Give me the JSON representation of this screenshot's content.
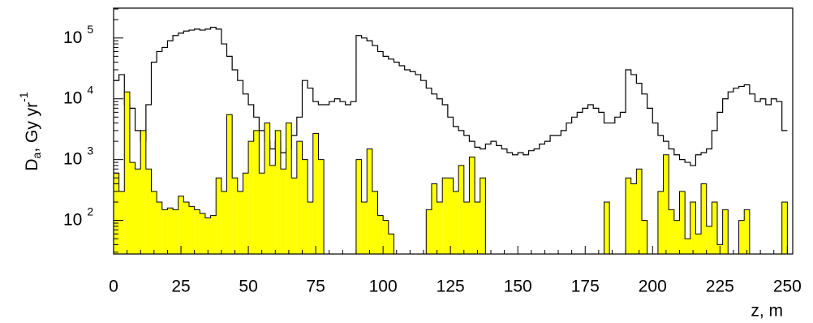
{
  "chart_data": {
    "type": "histogram",
    "y_label_parts": [
      "D",
      "a",
      ", Gy  yr",
      "-1"
    ],
    "x_label": "z, m",
    "xlim": [
      0,
      252
    ],
    "xticks": [
      0,
      25,
      50,
      75,
      100,
      125,
      150,
      175,
      200,
      225,
      250
    ],
    "ylim": [
      28,
      310000
    ],
    "log_y": true,
    "yticks": [
      {
        "value": 100,
        "label": "10",
        "exponent": "2"
      },
      {
        "value": 1000,
        "label": "10",
        "exponent": "3"
      },
      {
        "value": 10000,
        "label": "10",
        "exponent": "4"
      },
      {
        "value": 100000,
        "label": "10",
        "exponent": "5"
      }
    ],
    "bins": [
      0,
      2,
      4,
      6,
      8,
      10,
      12,
      14,
      16,
      18,
      20,
      22,
      24,
      26,
      28,
      30,
      32,
      34,
      36,
      38,
      40,
      42,
      44,
      46,
      48,
      50,
      52,
      54,
      56,
      58,
      60,
      62,
      64,
      66,
      68,
      70,
      72,
      74,
      76,
      78,
      80,
      82,
      84,
      86,
      88,
      90,
      92,
      94,
      96,
      98,
      100,
      102,
      104,
      106,
      108,
      110,
      112,
      114,
      116,
      118,
      120,
      122,
      124,
      126,
      128,
      130,
      132,
      134,
      136,
      138,
      140,
      142,
      144,
      146,
      148,
      150,
      152,
      154,
      156,
      158,
      160,
      162,
      164,
      166,
      168,
      170,
      172,
      174,
      176,
      178,
      180,
      182,
      184,
      186,
      188,
      190,
      192,
      194,
      196,
      198,
      200,
      202,
      204,
      206,
      208,
      210,
      212,
      214,
      216,
      218,
      220,
      222,
      224,
      226,
      228,
      230,
      232,
      234,
      236,
      238,
      240,
      242,
      244,
      246,
      248,
      250
    ],
    "series": [
      {
        "style": "step",
        "color": "#000000",
        "values": [
          20000,
          25000,
          8000,
          7000,
          3000,
          2000,
          8000,
          40000,
          60000,
          70000,
          90000,
          110000,
          120000,
          130000,
          135000,
          140000,
          135000,
          140000,
          150000,
          140000,
          80000,
          50000,
          30000,
          20000,
          12000,
          8000,
          5000,
          3000,
          2000,
          1500,
          2000,
          1300,
          1500,
          2500,
          5000,
          20000,
          15000,
          9000,
          8000,
          8000,
          9000,
          10000,
          9000,
          8000,
          9000,
          110000,
          100000,
          90000,
          75000,
          60000,
          50000,
          45000,
          40000,
          35000,
          30000,
          28000,
          25000,
          20000,
          15000,
          12000,
          10000,
          8000,
          5000,
          3500,
          3000,
          2500,
          2000,
          1600,
          1500,
          1800,
          2000,
          1700,
          1500,
          1300,
          1200,
          1300,
          1200,
          1400,
          1500,
          1800,
          2000,
          2500,
          2500,
          3000,
          4000,
          5000,
          6000,
          7000,
          8000,
          7000,
          6000,
          4000,
          4000,
          5000,
          6000,
          30000,
          25000,
          18000,
          12000,
          7000,
          4000,
          2500,
          2000,
          1500,
          1200,
          1000,
          900,
          800,
          1200,
          1300,
          1500,
          3000,
          6000,
          10000,
          13000,
          15000,
          16000,
          17000,
          12000,
          9000,
          10000,
          8000,
          10000,
          9000,
          3000
        ]
      },
      {
        "style": "filled",
        "color": "#ffff00",
        "values": [
          600,
          300,
          13000,
          900,
          700,
          3000,
          700,
          300,
          200,
          150,
          160,
          150,
          250,
          200,
          170,
          150,
          130,
          110,
          120,
          500,
          300,
          5500,
          500,
          300,
          600,
          2000,
          3000,
          600,
          4000,
          800,
          3000,
          700,
          4000,
          500,
          2000,
          1000,
          200,
          2700,
          1000,
          0,
          0,
          0,
          0,
          0,
          0,
          1000,
          200,
          1500,
          300,
          120,
          100,
          60,
          0,
          0,
          0,
          0,
          0,
          0,
          150,
          400,
          200,
          500,
          500,
          300,
          800,
          200,
          1100,
          200,
          500,
          0,
          0,
          0,
          0,
          0,
          0,
          0,
          0,
          0,
          0,
          0,
          0,
          0,
          0,
          0,
          0,
          0,
          0,
          0,
          0,
          0,
          0,
          200,
          0,
          0,
          0,
          500,
          400,
          700,
          100,
          0,
          0,
          300,
          1200,
          150,
          100,
          300,
          50,
          200,
          60,
          400,
          80,
          200,
          40,
          150,
          0,
          0,
          100,
          150,
          0,
          0,
          0,
          0,
          0,
          0,
          200
        ]
      }
    ]
  }
}
